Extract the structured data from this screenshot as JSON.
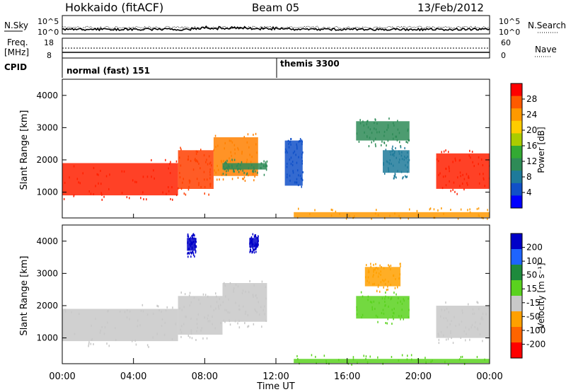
{
  "header": {
    "station": "Hokkaido (fitACF)",
    "beam": "Beam 05",
    "date": "13/Feb/2012"
  },
  "left_labels": {
    "nsky": "N.Sky",
    "freq": "Freq.",
    "freq_unit": "[MHz]",
    "cpid": "CPID"
  },
  "right_labels": {
    "nsearch": "N.Search",
    "nave": "Nave"
  },
  "noise_axis": {
    "left_ticks": [
      "10^5",
      "10^0"
    ],
    "right_ticks": [
      "10^5",
      "10^0"
    ]
  },
  "freq_axis": {
    "left_ticks": [
      "18",
      "8"
    ],
    "right_ticks": [
      "60",
      "0"
    ]
  },
  "cpid": [
    {
      "label": "normal (fast) 151",
      "start_hour": 0
    },
    {
      "label": "themis 3300",
      "start_hour": 12
    }
  ],
  "colorbar_power": {
    "label": "Power [dB]",
    "ticks": [
      "28",
      "24",
      "20",
      "16",
      "12",
      "8",
      "4"
    ],
    "colors": [
      "#ff0000",
      "#ff5a00",
      "#ff9900",
      "#ffcc00",
      "#aacc00",
      "#33aa33",
      "#2e8b57",
      "#1e7a9a",
      "#1050c8",
      "#0000ff"
    ]
  },
  "colorbar_velocity": {
    "label": "Velocity [m s⁻¹]",
    "ticks": [
      "200",
      "100",
      "50",
      "15",
      "-15",
      "-50",
      "-100",
      "-200"
    ],
    "colors": [
      "#0000c8",
      "#1e64ff",
      "#1e8a3c",
      "#5ad21e",
      "#c8c8c8",
      "#ffa000",
      "#ff6400",
      "#ff0000"
    ]
  },
  "chart_data": [
    {
      "type": "heatmap",
      "name": "power",
      "ylabel": "Slant Range [km]",
      "xlim": [
        0,
        24
      ],
      "ylim": [
        200,
        4500
      ],
      "y_ticks": [
        "4000",
        "3000",
        "2000",
        "1000"
      ],
      "regions": [
        {
          "t0": 0,
          "t1": 6.5,
          "r0": 900,
          "r1": 1900,
          "color": "#ff2000"
        },
        {
          "t0": 6.5,
          "t1": 8.5,
          "r0": 1100,
          "r1": 2300,
          "color": "#ff4000"
        },
        {
          "t0": 8.5,
          "t1": 11,
          "r0": 1500,
          "r1": 2700,
          "color": "#ff8000"
        },
        {
          "t0": 9,
          "t1": 11.5,
          "r0": 1700,
          "r1": 1900,
          "color": "#2e8b57"
        },
        {
          "t0": 12.5,
          "t1": 13.5,
          "r0": 1200,
          "r1": 2600,
          "color": "#1050c8"
        },
        {
          "t0": 16.5,
          "t1": 19.5,
          "r0": 2600,
          "r1": 3200,
          "color": "#2e8b57"
        },
        {
          "t0": 18,
          "t1": 19.5,
          "r0": 1600,
          "r1": 2300,
          "color": "#1e7a9a"
        },
        {
          "t0": 21,
          "t1": 24,
          "r0": 1100,
          "r1": 2200,
          "color": "#ff2000"
        },
        {
          "t0": 13,
          "t1": 24,
          "r0": 220,
          "r1": 380,
          "color": "#ff9900"
        }
      ]
    },
    {
      "type": "heatmap",
      "name": "velocity",
      "ylabel": "Slant Range [km]",
      "xlabel": "Time UT",
      "xlim": [
        0,
        24
      ],
      "ylim": [
        200,
        4500
      ],
      "y_ticks": [
        "4000",
        "3000",
        "2000",
        "1000"
      ],
      "x_ticks": [
        "00:00",
        "04:00",
        "08:00",
        "12:00",
        "16:00",
        "20:00",
        "00:00"
      ],
      "regions": [
        {
          "t0": 0,
          "t1": 6.5,
          "r0": 900,
          "r1": 1900,
          "color": "#c8c8c8"
        },
        {
          "t0": 6.5,
          "t1": 9,
          "r0": 1100,
          "r1": 2300,
          "color": "#c8c8c8"
        },
        {
          "t0": 9,
          "t1": 11.5,
          "r0": 1500,
          "r1": 2700,
          "color": "#c8c8c8"
        },
        {
          "t0": 7,
          "t1": 7.5,
          "r0": 3700,
          "r1": 4100,
          "color": "#0000c8"
        },
        {
          "t0": 10.5,
          "t1": 11,
          "r0": 3800,
          "r1": 4100,
          "color": "#0000c8"
        },
        {
          "t0": 16.5,
          "t1": 19.5,
          "r0": 1600,
          "r1": 2300,
          "color": "#5ad21e"
        },
        {
          "t0": 17,
          "t1": 19,
          "r0": 2600,
          "r1": 3200,
          "color": "#ffa000"
        },
        {
          "t0": 21,
          "t1": 24,
          "r0": 1000,
          "r1": 2000,
          "color": "#c8c8c8"
        },
        {
          "t0": 13,
          "t1": 24,
          "r0": 220,
          "r1": 350,
          "color": "#5ad21e"
        }
      ]
    }
  ]
}
